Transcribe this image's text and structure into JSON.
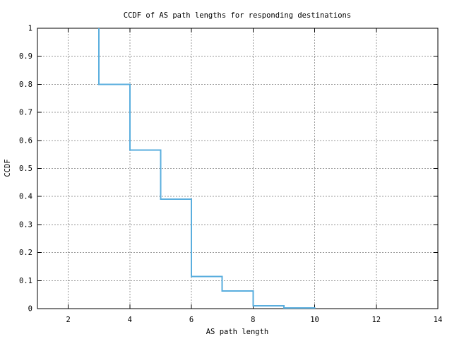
{
  "chart_data": {
    "type": "line",
    "subtype": "step-ccdf",
    "title": "CCDF of AS path lengths for responding destinations",
    "xlabel": "AS path length",
    "ylabel": "CCDF",
    "xlim": [
      1,
      14
    ],
    "ylim": [
      0,
      1
    ],
    "xticks": [
      2,
      4,
      6,
      8,
      10,
      12,
      14
    ],
    "xtick_labels": [
      "2",
      "4",
      "6",
      "8",
      "10",
      "12",
      "14"
    ],
    "yticks": [
      0,
      0.1,
      0.2,
      0.3,
      0.4,
      0.5,
      0.6,
      0.7,
      0.8,
      0.9,
      1
    ],
    "ytick_labels": [
      "0",
      "0.1",
      "0.2",
      "0.3",
      "0.4",
      "0.5",
      "0.6",
      "0.7",
      "0.8",
      "0.9",
      "1"
    ],
    "grid_x": [
      2,
      4,
      6,
      8,
      10,
      12
    ],
    "grid_y": [
      0.1,
      0.2,
      0.3,
      0.4,
      0.5,
      0.6,
      0.7,
      0.8,
      0.9
    ],
    "grid": "dashed",
    "legend": "none",
    "start_point": {
      "x": 3,
      "y": 1.0
    },
    "step_x": [
      3,
      4,
      5,
      6,
      7,
      8,
      9,
      10
    ],
    "step_y": [
      0.8,
      0.565,
      0.39,
      0.115,
      0.063,
      0.01,
      0.0025,
      0
    ],
    "colors": {
      "line": "#5aaede",
      "grid": "#999999",
      "border": "#000000",
      "text": "#000000",
      "background": "#ffffff"
    }
  }
}
